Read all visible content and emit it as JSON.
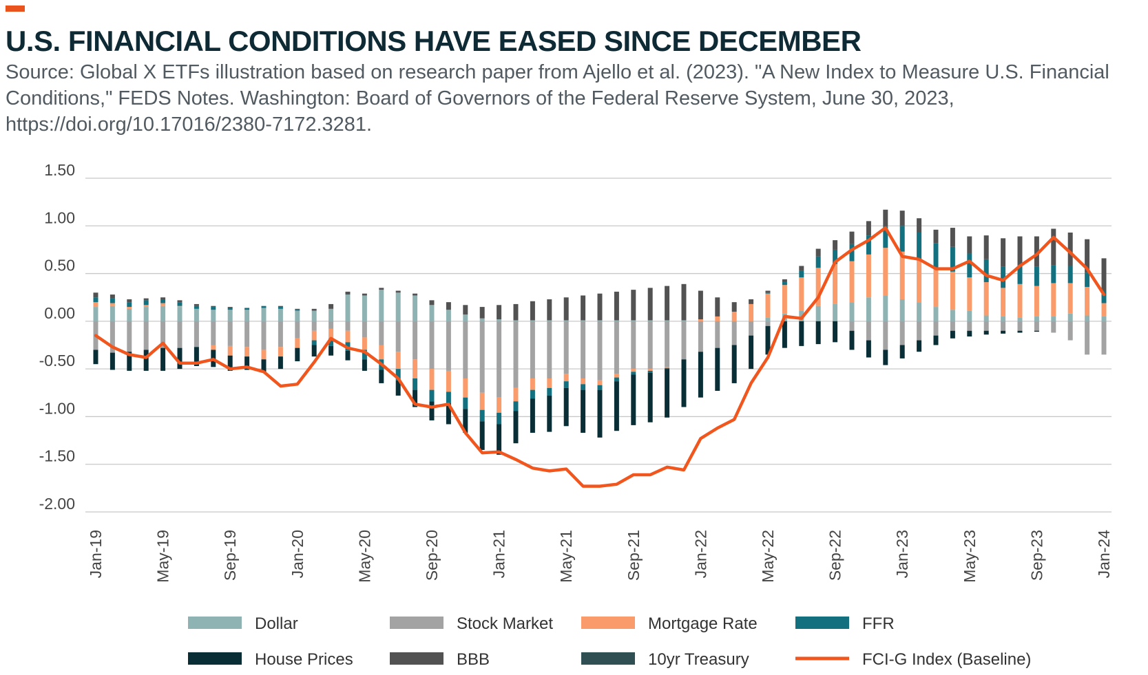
{
  "title": "U.S. FINANCIAL CONDITIONS HAVE EASED SINCE DECEMBER",
  "subtitle": "Source: Global X ETFs illustration based on research paper from Ajello et al. (2023). \"A New Index to Measure U.S. Financial Conditions,\" FEDS Notes. Washington: Board of Governors of the Federal Reserve System, June 30, 2023, https://doi.org/10.17016/2380-7172.3281.",
  "accent_color": "#E9531D",
  "chart_data": {
    "type": "bar",
    "stacked": true,
    "overlay_line": "FCI-G Index (Baseline)",
    "ylim": [
      -2.0,
      1.5
    ],
    "yticks": [
      {
        "value": 1.5,
        "label": "1.50"
      },
      {
        "value": 1.0,
        "label": "1.00"
      },
      {
        "value": 0.5,
        "label": "0.50"
      },
      {
        "value": 0.0,
        "label": "0.00"
      },
      {
        "value": -0.5,
        "label": "-0.50"
      },
      {
        "value": -1.0,
        "label": "-1.00"
      },
      {
        "value": -1.5,
        "label": "-1.50"
      },
      {
        "value": -2.0,
        "label": "-2.00"
      }
    ],
    "xticks": [
      {
        "index": 0,
        "label": "Jan-19"
      },
      {
        "index": 4,
        "label": "May-19"
      },
      {
        "index": 8,
        "label": "Sep-19"
      },
      {
        "index": 12,
        "label": "Jan-20"
      },
      {
        "index": 16,
        "label": "May-20"
      },
      {
        "index": 20,
        "label": "Sep-20"
      },
      {
        "index": 24,
        "label": "Jan-21"
      },
      {
        "index": 28,
        "label": "May-21"
      },
      {
        "index": 32,
        "label": "Sep-21"
      },
      {
        "index": 36,
        "label": "Jan-22"
      },
      {
        "index": 40,
        "label": "May-22"
      },
      {
        "index": 44,
        "label": "Sep-22"
      },
      {
        "index": 48,
        "label": "Jan-23"
      },
      {
        "index": 52,
        "label": "May-23"
      },
      {
        "index": 56,
        "label": "Sep-23"
      },
      {
        "index": 60,
        "label": "Jan-24"
      }
    ],
    "series": [
      {
        "name": "Dollar",
        "key": "dollar",
        "color": "#8FB3B3",
        "kind": "bar",
        "values": [
          0.15,
          0.16,
          0.13,
          0.15,
          0.16,
          0.15,
          0.13,
          0.12,
          0.12,
          0.12,
          0.14,
          0.13,
          0.11,
          0.11,
          0.13,
          0.28,
          0.27,
          0.33,
          0.3,
          0.27,
          0.17,
          0.12,
          0.07,
          0.03,
          0.02,
          0.01,
          0.01,
          0.01,
          0.01,
          0.01,
          0.01,
          0.01,
          0.01,
          0.01,
          0.01,
          0.01,
          0.0,
          0.0,
          0.0,
          0.0,
          0.04,
          0.08,
          0.11,
          0.16,
          0.18,
          0.2,
          0.25,
          0.27,
          0.23,
          0.2,
          0.15,
          0.12,
          0.11,
          0.06,
          0.05,
          0.04,
          0.05,
          0.05,
          0.08,
          0.06,
          0.05
        ]
      },
      {
        "name": "Stock Market",
        "key": "stock",
        "color": "#A3A3A3",
        "kind": "bar",
        "values": [
          -0.3,
          -0.33,
          -0.32,
          -0.3,
          -0.28,
          -0.28,
          -0.27,
          -0.25,
          -0.26,
          -0.27,
          -0.3,
          -0.27,
          -0.18,
          -0.1,
          -0.08,
          -0.1,
          -0.17,
          -0.25,
          -0.32,
          -0.4,
          -0.5,
          -0.52,
          -0.6,
          -0.75,
          -0.8,
          -0.7,
          -0.6,
          -0.6,
          -0.55,
          -0.6,
          -0.62,
          -0.55,
          -0.5,
          -0.5,
          -0.48,
          -0.4,
          -0.32,
          -0.28,
          -0.25,
          -0.15,
          -0.05,
          0.0,
          0.0,
          0.0,
          0.0,
          -0.1,
          -0.2,
          -0.3,
          -0.25,
          -0.2,
          -0.15,
          -0.1,
          -0.1,
          -0.1,
          -0.1,
          -0.1,
          -0.1,
          -0.12,
          -0.2,
          -0.35,
          -0.35
        ]
      },
      {
        "name": "Mortgage Rate",
        "key": "mortgage",
        "color": "#F99B6B",
        "kind": "bar",
        "values": [
          0.05,
          0.03,
          0.02,
          0.02,
          0.03,
          0.01,
          0.0,
          -0.05,
          -0.1,
          -0.1,
          -0.1,
          -0.1,
          -0.1,
          -0.1,
          -0.1,
          -0.12,
          -0.13,
          -0.15,
          -0.18,
          -0.2,
          -0.22,
          -0.22,
          -0.2,
          -0.18,
          -0.16,
          -0.14,
          -0.12,
          -0.1,
          -0.08,
          -0.06,
          -0.05,
          -0.04,
          -0.03,
          -0.02,
          -0.01,
          0.0,
          0.02,
          0.05,
          0.1,
          0.18,
          0.25,
          0.3,
          0.35,
          0.4,
          0.42,
          0.43,
          0.45,
          0.5,
          0.5,
          0.45,
          0.4,
          0.4,
          0.35,
          0.35,
          0.3,
          0.35,
          0.32,
          0.35,
          0.32,
          0.3,
          0.14
        ]
      },
      {
        "name": "FFR",
        "key": "ffr",
        "color": "#12707F",
        "kind": "bar",
        "values": [
          0.05,
          0.05,
          0.05,
          0.05,
          0.04,
          0.04,
          0.03,
          0.03,
          0.02,
          0.02,
          0.02,
          0.02,
          0.01,
          -0.05,
          -0.08,
          -0.09,
          -0.1,
          -0.11,
          -0.12,
          -0.12,
          -0.12,
          -0.12,
          -0.12,
          -0.12,
          -0.12,
          -0.1,
          -0.09,
          -0.08,
          -0.07,
          -0.06,
          -0.05,
          -0.04,
          -0.03,
          -0.02,
          -0.01,
          0.0,
          0.0,
          0.0,
          0.0,
          0.0,
          0.01,
          0.03,
          0.07,
          0.12,
          0.15,
          0.18,
          0.2,
          0.22,
          0.27,
          0.28,
          0.27,
          0.26,
          0.25,
          0.24,
          0.22,
          0.2,
          0.2,
          0.19,
          0.18,
          0.15,
          0.13
        ]
      },
      {
        "name": "House Prices",
        "key": "house",
        "color": "#0A2E36",
        "kind": "bar",
        "values": [
          -0.15,
          -0.18,
          -0.2,
          -0.22,
          -0.24,
          -0.22,
          -0.2,
          -0.18,
          -0.16,
          -0.14,
          -0.13,
          -0.13,
          -0.14,
          -0.12,
          -0.1,
          -0.1,
          -0.12,
          -0.14,
          -0.16,
          -0.18,
          -0.2,
          -0.22,
          -0.25,
          -0.3,
          -0.32,
          -0.34,
          -0.36,
          -0.38,
          -0.4,
          -0.45,
          -0.5,
          -0.52,
          -0.53,
          -0.52,
          -0.51,
          -0.5,
          -0.48,
          -0.45,
          -0.4,
          -0.35,
          -0.3,
          -0.28,
          -0.26,
          -0.24,
          -0.22,
          -0.2,
          -0.18,
          -0.16,
          -0.14,
          -0.12,
          -0.1,
          -0.08,
          -0.06,
          -0.04,
          -0.03,
          -0.02,
          -0.01,
          0.0,
          0.0,
          0.0,
          0.0
        ]
      },
      {
        "name": "BBB",
        "key": "bbb",
        "color": "#525252",
        "kind": "bar",
        "values": [
          0.05,
          0.04,
          0.03,
          0.02,
          0.02,
          0.02,
          0.02,
          0.01,
          0.01,
          0.0,
          0.0,
          0.01,
          0.01,
          0.02,
          0.05,
          0.03,
          0.02,
          0.02,
          0.02,
          0.02,
          0.05,
          0.08,
          0.1,
          0.12,
          0.15,
          0.17,
          0.2,
          0.22,
          0.24,
          0.26,
          0.28,
          0.3,
          0.32,
          0.34,
          0.36,
          0.38,
          0.3,
          0.2,
          0.1,
          0.05,
          0.02,
          0.03,
          0.05,
          0.08,
          0.1,
          0.13,
          0.15,
          0.18,
          0.16,
          0.15,
          0.14,
          0.2,
          0.18,
          0.25,
          0.3,
          0.3,
          0.32,
          0.38,
          0.35,
          0.35,
          0.34
        ]
      },
      {
        "name": "10yr Treasury",
        "key": "treasury",
        "color": "#2F4F53",
        "kind": "bar",
        "values": [
          0.0,
          0.0,
          0.0,
          0.0,
          0.0,
          0.0,
          0.0,
          0.0,
          0.0,
          0.0,
          0.0,
          0.0,
          0.0,
          0.0,
          0.0,
          0.0,
          0.0,
          0.0,
          0.0,
          0.0,
          0.0,
          0.0,
          0.0,
          0.0,
          0.0,
          0.0,
          0.0,
          0.0,
          0.0,
          0.0,
          0.0,
          0.0,
          0.0,
          0.0,
          0.0,
          0.0,
          0.0,
          0.0,
          0.0,
          0.0,
          0.0,
          0.0,
          0.0,
          0.0,
          0.0,
          0.0,
          0.0,
          0.0,
          0.0,
          0.0,
          0.0,
          0.0,
          0.0,
          0.0,
          0.0,
          0.0,
          0.0,
          0.0,
          0.0,
          0.0,
          0.0
        ]
      },
      {
        "name": "FCI-G Index (Baseline)",
        "key": "fci",
        "color": "#F0561D",
        "kind": "line",
        "values": [
          -0.15,
          -0.27,
          -0.35,
          -0.38,
          -0.23,
          -0.44,
          -0.44,
          -0.4,
          -0.5,
          -0.48,
          -0.53,
          -0.68,
          -0.66,
          -0.43,
          -0.18,
          -0.28,
          -0.32,
          -0.45,
          -0.6,
          -0.87,
          -0.9,
          -0.87,
          -1.17,
          -1.38,
          -1.37,
          -1.45,
          -1.54,
          -1.57,
          -1.55,
          -1.73,
          -1.73,
          -1.71,
          -1.61,
          -1.61,
          -1.53,
          -1.56,
          -1.23,
          -1.12,
          -1.03,
          -0.65,
          -0.38,
          0.05,
          0.03,
          0.25,
          0.62,
          0.75,
          0.85,
          0.98,
          0.68,
          0.65,
          0.55,
          0.55,
          0.63,
          0.48,
          0.43,
          0.58,
          0.7,
          0.88,
          0.72,
          0.55,
          0.28
        ]
      }
    ]
  }
}
